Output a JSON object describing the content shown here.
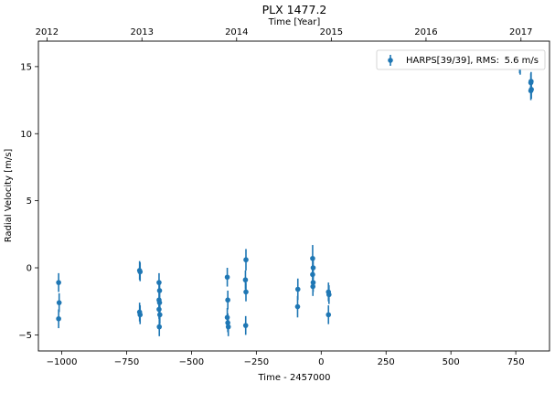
{
  "chart_data": {
    "type": "scatter",
    "title": "PLX 1477.2",
    "xlabel": "Time - 2457000",
    "ylabel": "Radial Velocity [m/s]",
    "top_xlabel": "Time [Year]",
    "xlim": [
      -1090,
      880
    ],
    "ylim": [
      -6.2,
      16.9
    ],
    "x_ticks": [
      -1000,
      -750,
      -500,
      -250,
      0,
      250,
      500,
      750
    ],
    "x_tick_labels": [
      "−1000",
      "−750",
      "−500",
      "−250",
      "0",
      "250",
      "500",
      "750"
    ],
    "y_ticks": [
      -5,
      0,
      5,
      10,
      15
    ],
    "y_tick_labels": [
      "−5",
      "0",
      "5",
      "10",
      "15"
    ],
    "top_ticks": [
      -1057,
      -691,
      -326,
      39,
      404,
      770
    ],
    "top_tick_labels": [
      "2012",
      "2013",
      "2014",
      "2015",
      "2016",
      "2017"
    ],
    "grid": false,
    "legend_position": "top-right",
    "series": [
      {
        "name": "HARPS[39/39], RMS:",
        "rms_label": "5.6 m/s",
        "color": "#1f77b4",
        "points": [
          {
            "x": -1012,
            "y": -1.1,
            "err": 0.7
          },
          {
            "x": -1010,
            "y": -2.6,
            "err": 0.7
          },
          {
            "x": -1012,
            "y": -3.8,
            "err": 0.7
          },
          {
            "x": -700,
            "y": -0.2,
            "err": 0.7
          },
          {
            "x": -698,
            "y": -0.3,
            "err": 0.7
          },
          {
            "x": -700,
            "y": -3.3,
            "err": 0.7
          },
          {
            "x": -698,
            "y": -3.5,
            "err": 0.7
          },
          {
            "x": -625,
            "y": -1.1,
            "err": 0.7
          },
          {
            "x": -623,
            "y": -1.7,
            "err": 0.7
          },
          {
            "x": -625,
            "y": -2.4,
            "err": 0.7
          },
          {
            "x": -623,
            "y": -2.6,
            "err": 0.7
          },
          {
            "x": -625,
            "y": -3.1,
            "err": 0.7
          },
          {
            "x": -622,
            "y": -3.5,
            "err": 0.7
          },
          {
            "x": -624,
            "y": -4.4,
            "err": 0.7
          },
          {
            "x": -362,
            "y": -0.7,
            "err": 0.7
          },
          {
            "x": -360,
            "y": -2.4,
            "err": 0.7
          },
          {
            "x": -362,
            "y": -3.7,
            "err": 0.7
          },
          {
            "x": -360,
            "y": -4.1,
            "err": 0.7
          },
          {
            "x": -358,
            "y": -4.4,
            "err": 0.7
          },
          {
            "x": -290,
            "y": 0.6,
            "err": 0.8
          },
          {
            "x": -292,
            "y": -0.9,
            "err": 0.7
          },
          {
            "x": -290,
            "y": -1.8,
            "err": 0.7
          },
          {
            "x": -291,
            "y": -4.3,
            "err": 0.7
          },
          {
            "x": -90,
            "y": -1.6,
            "err": 0.8
          },
          {
            "x": -91,
            "y": -2.9,
            "err": 0.8
          },
          {
            "x": -33,
            "y": 0.7,
            "err": 1.0
          },
          {
            "x": -31,
            "y": 0.0,
            "err": 0.8
          },
          {
            "x": -33,
            "y": -0.5,
            "err": 0.7
          },
          {
            "x": -31,
            "y": -1.1,
            "err": 0.7
          },
          {
            "x": -32,
            "y": -1.4,
            "err": 0.7
          },
          {
            "x": 28,
            "y": -1.8,
            "err": 0.7
          },
          {
            "x": 30,
            "y": -2.0,
            "err": 0.7
          },
          {
            "x": 28,
            "y": -3.5,
            "err": 0.7
          },
          {
            "x": 765,
            "y": 15.2,
            "err": 0.7
          },
          {
            "x": 767,
            "y": 15.1,
            "err": 0.7
          },
          {
            "x": 808,
            "y": 13.8,
            "err": 0.7
          },
          {
            "x": 810,
            "y": 13.3,
            "err": 0.7
          },
          {
            "x": 808,
            "y": 13.2,
            "err": 0.7
          },
          {
            "x": 809,
            "y": 13.9,
            "err": 0.7
          }
        ]
      }
    ]
  }
}
